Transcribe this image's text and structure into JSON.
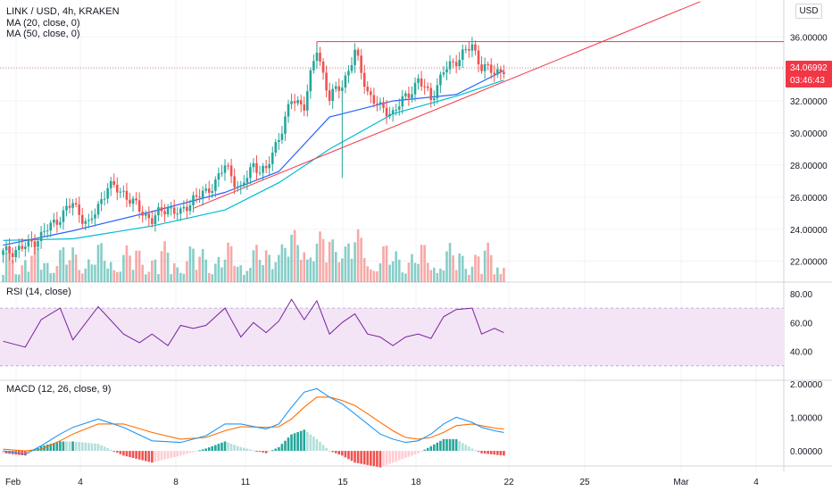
{
  "header": {
    "symbol_line": "LINK / USD, 4h, KRAKEN",
    "ma20_label": "MA (20, close, 0)",
    "ma50_label": "MA (50, close, 0)",
    "currency": "USD"
  },
  "price_badge": {
    "value": "34.06992",
    "countdown": "03:46:43",
    "color": "#f23645"
  },
  "price_axis_ticks": [
    "36.00000",
    "34.00000",
    "32.00000",
    "30.00000",
    "28.00000",
    "26.00000",
    "24.00000",
    "22.00000"
  ],
  "rsi_label": "RSI (14, close)",
  "rsi_ticks": [
    "80.00",
    "60.00",
    "40.00"
  ],
  "macd_label": "MACD (12, 26, close, 9)",
  "macd_ticks": [
    "2.00000",
    "1.00000",
    "0.00000"
  ],
  "time_ticks": [
    "Feb",
    "4",
    "8",
    "11",
    "15",
    "18",
    "22",
    "25",
    "Mar",
    "4"
  ],
  "colors": {
    "up": "#26a69a",
    "down": "#ef5350",
    "ma20": "#2962ff",
    "ma50": "#00bcd4",
    "trendline": "#f23645",
    "rsi": "#7b1fa2",
    "rsi_band": "#f3e5f5",
    "macd": "#2196f3",
    "signal": "#ff6d00"
  },
  "chart_data": [
    {
      "type": "candlestick",
      "title": "LINK / USD, 4h, KRAKEN",
      "ylim": [
        20.7,
        38.3
      ],
      "x_tick_labels": [
        "Feb",
        "4",
        "8",
        "11",
        "15",
        "18",
        "22",
        "25",
        "Mar",
        "4"
      ],
      "close_points": [
        {
          "bar": 0,
          "close": 22.5
        },
        {
          "bar": 7,
          "close": 22.9
        },
        {
          "bar": 12,
          "close": 23.6
        },
        {
          "bar": 18,
          "close": 24.8
        },
        {
          "bar": 22,
          "close": 25.6
        },
        {
          "bar": 27,
          "close": 24.2
        },
        {
          "bar": 33,
          "close": 26.7
        },
        {
          "bar": 38,
          "close": 26.3
        },
        {
          "bar": 43,
          "close": 25.2
        },
        {
          "bar": 47,
          "close": 24.6
        },
        {
          "bar": 52,
          "close": 25.4
        },
        {
          "bar": 56,
          "close": 24.9
        },
        {
          "bar": 60,
          "close": 26.0
        },
        {
          "bar": 64,
          "close": 26.2
        },
        {
          "bar": 70,
          "close": 27.9
        },
        {
          "bar": 75,
          "close": 26.5
        },
        {
          "bar": 79,
          "close": 28.0
        },
        {
          "bar": 83,
          "close": 27.6
        },
        {
          "bar": 87,
          "close": 29.8
        },
        {
          "bar": 91,
          "close": 32.0
        },
        {
          "bar": 95,
          "close": 31.8
        },
        {
          "bar": 99,
          "close": 35.2
        },
        {
          "bar": 103,
          "close": 32.2
        },
        {
          "bar": 107,
          "close": 33.0
        },
        {
          "bar": 111,
          "close": 35.0
        },
        {
          "bar": 115,
          "close": 32.6
        },
        {
          "bar": 119,
          "close": 31.5
        },
        {
          "bar": 123,
          "close": 31.3
        },
        {
          "bar": 127,
          "close": 32.2
        },
        {
          "bar": 131,
          "close": 33.3
        },
        {
          "bar": 135,
          "close": 32.2
        },
        {
          "bar": 139,
          "close": 33.8
        },
        {
          "bar": 143,
          "close": 34.6
        },
        {
          "bar": 148,
          "close": 35.4
        },
        {
          "bar": 151,
          "close": 34.2
        },
        {
          "bar": 155,
          "close": 33.7
        },
        {
          "bar": 158,
          "close": 34.07
        }
      ],
      "ma20_points": [
        {
          "bar": 0,
          "value": 23.0
        },
        {
          "bar": 22,
          "value": 23.9
        },
        {
          "bar": 47,
          "value": 25.1
        },
        {
          "bar": 70,
          "value": 26.3
        },
        {
          "bar": 87,
          "value": 27.6
        },
        {
          "bar": 103,
          "value": 31.0
        },
        {
          "bar": 123,
          "value": 32.0
        },
        {
          "bar": 143,
          "value": 32.4
        },
        {
          "bar": 158,
          "value": 33.9
        }
      ],
      "ma50_points": [
        {
          "bar": 0,
          "value": 23.3
        },
        {
          "bar": 22,
          "value": 23.4
        },
        {
          "bar": 47,
          "value": 24.2
        },
        {
          "bar": 70,
          "value": 25.2
        },
        {
          "bar": 87,
          "value": 26.9
        },
        {
          "bar": 103,
          "value": 29.0
        },
        {
          "bar": 123,
          "value": 31.2
        },
        {
          "bar": 143,
          "value": 32.3
        },
        {
          "bar": 158,
          "value": 33.3
        }
      ],
      "resistance_level": 35.7,
      "trendline": [
        {
          "bar": 60,
          "value": 25.3
        },
        {
          "bar": 158,
          "value": 33.2
        }
      ]
    },
    {
      "type": "line",
      "title": "RSI (14, close)",
      "ylim": [
        20,
        88
      ],
      "bands": [
        70,
        30
      ],
      "points": [
        {
          "bar": 0,
          "value": 47
        },
        {
          "bar": 7,
          "value": 43
        },
        {
          "bar": 12,
          "value": 62
        },
        {
          "bar": 18,
          "value": 70
        },
        {
          "bar": 22,
          "value": 48
        },
        {
          "bar": 30,
          "value": 71
        },
        {
          "bar": 38,
          "value": 52
        },
        {
          "bar": 43,
          "value": 46
        },
        {
          "bar": 47,
          "value": 52
        },
        {
          "bar": 52,
          "value": 44
        },
        {
          "bar": 56,
          "value": 58
        },
        {
          "bar": 60,
          "value": 56
        },
        {
          "bar": 64,
          "value": 58
        },
        {
          "bar": 70,
          "value": 70
        },
        {
          "bar": 75,
          "value": 50
        },
        {
          "bar": 79,
          "value": 60
        },
        {
          "bar": 83,
          "value": 53
        },
        {
          "bar": 87,
          "value": 61
        },
        {
          "bar": 91,
          "value": 76
        },
        {
          "bar": 95,
          "value": 62
        },
        {
          "bar": 99,
          "value": 75
        },
        {
          "bar": 103,
          "value": 52
        },
        {
          "bar": 107,
          "value": 60
        },
        {
          "bar": 111,
          "value": 66
        },
        {
          "bar": 115,
          "value": 52
        },
        {
          "bar": 119,
          "value": 50
        },
        {
          "bar": 123,
          "value": 44
        },
        {
          "bar": 127,
          "value": 50
        },
        {
          "bar": 131,
          "value": 52
        },
        {
          "bar": 135,
          "value": 49
        },
        {
          "bar": 139,
          "value": 64
        },
        {
          "bar": 143,
          "value": 69
        },
        {
          "bar": 148,
          "value": 70
        },
        {
          "bar": 151,
          "value": 52
        },
        {
          "bar": 155,
          "value": 56
        },
        {
          "bar": 158,
          "value": 53
        }
      ]
    },
    {
      "type": "line",
      "title": "MACD (12, 26, close, 9)",
      "ylim": [
        -0.45,
        2.1
      ],
      "macd_points": [
        {
          "bar": 0,
          "value": 0.0
        },
        {
          "bar": 7,
          "value": -0.1
        },
        {
          "bar": 12,
          "value": 0.15
        },
        {
          "bar": 18,
          "value": 0.5
        },
        {
          "bar": 22,
          "value": 0.7
        },
        {
          "bar": 30,
          "value": 0.95
        },
        {
          "bar": 38,
          "value": 0.7
        },
        {
          "bar": 47,
          "value": 0.3
        },
        {
          "bar": 56,
          "value": 0.25
        },
        {
          "bar": 64,
          "value": 0.45
        },
        {
          "bar": 70,
          "value": 0.8
        },
        {
          "bar": 75,
          "value": 0.8
        },
        {
          "bar": 83,
          "value": 0.65
        },
        {
          "bar": 87,
          "value": 0.8
        },
        {
          "bar": 91,
          "value": 1.3
        },
        {
          "bar": 95,
          "value": 1.75
        },
        {
          "bar": 99,
          "value": 1.85
        },
        {
          "bar": 103,
          "value": 1.6
        },
        {
          "bar": 107,
          "value": 1.4
        },
        {
          "bar": 111,
          "value": 1.1
        },
        {
          "bar": 115,
          "value": 0.8
        },
        {
          "bar": 119,
          "value": 0.5
        },
        {
          "bar": 123,
          "value": 0.35
        },
        {
          "bar": 127,
          "value": 0.25
        },
        {
          "bar": 131,
          "value": 0.3
        },
        {
          "bar": 135,
          "value": 0.5
        },
        {
          "bar": 139,
          "value": 0.8
        },
        {
          "bar": 143,
          "value": 1.0
        },
        {
          "bar": 148,
          "value": 0.85
        },
        {
          "bar": 151,
          "value": 0.7
        },
        {
          "bar": 155,
          "value": 0.6
        },
        {
          "bar": 158,
          "value": 0.55
        }
      ],
      "signal_points": [
        {
          "bar": 0,
          "value": 0.05
        },
        {
          "bar": 7,
          "value": 0.0
        },
        {
          "bar": 12,
          "value": 0.05
        },
        {
          "bar": 18,
          "value": 0.3
        },
        {
          "bar": 22,
          "value": 0.5
        },
        {
          "bar": 30,
          "value": 0.8
        },
        {
          "bar": 38,
          "value": 0.8
        },
        {
          "bar": 47,
          "value": 0.55
        },
        {
          "bar": 56,
          "value": 0.35
        },
        {
          "bar": 64,
          "value": 0.4
        },
        {
          "bar": 70,
          "value": 0.6
        },
        {
          "bar": 75,
          "value": 0.72
        },
        {
          "bar": 83,
          "value": 0.7
        },
        {
          "bar": 87,
          "value": 0.72
        },
        {
          "bar": 91,
          "value": 0.95
        },
        {
          "bar": 95,
          "value": 1.3
        },
        {
          "bar": 99,
          "value": 1.6
        },
        {
          "bar": 103,
          "value": 1.6
        },
        {
          "bar": 107,
          "value": 1.5
        },
        {
          "bar": 111,
          "value": 1.35
        },
        {
          "bar": 115,
          "value": 1.1
        },
        {
          "bar": 119,
          "value": 0.85
        },
        {
          "bar": 123,
          "value": 0.6
        },
        {
          "bar": 127,
          "value": 0.4
        },
        {
          "bar": 131,
          "value": 0.35
        },
        {
          "bar": 135,
          "value": 0.4
        },
        {
          "bar": 139,
          "value": 0.55
        },
        {
          "bar": 143,
          "value": 0.75
        },
        {
          "bar": 148,
          "value": 0.8
        },
        {
          "bar": 151,
          "value": 0.75
        },
        {
          "bar": 155,
          "value": 0.68
        },
        {
          "bar": 158,
          "value": 0.65
        }
      ]
    }
  ]
}
